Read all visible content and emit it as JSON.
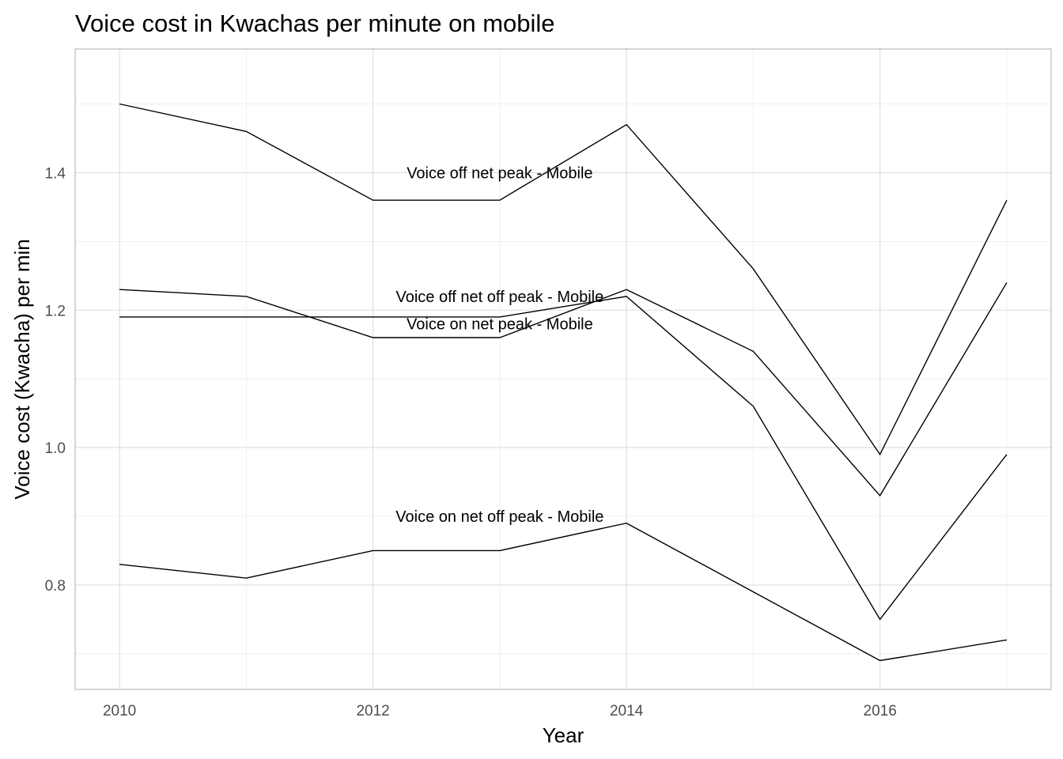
{
  "chart_data": {
    "type": "line",
    "title": "Voice cost in Kwachas per minute on mobile",
    "xlabel": "Year",
    "ylabel": "Voice cost (Kwacha) per min",
    "x": [
      2010,
      2011,
      2012,
      2013,
      2014,
      2015,
      2016,
      2017
    ],
    "xlim": [
      2009.65,
      2017.35
    ],
    "ylim": [
      0.648,
      1.58
    ],
    "x_ticks": [
      2010,
      2012,
      2014,
      2016
    ],
    "x_tick_labels": [
      "2010",
      "2012",
      "2014",
      "2016"
    ],
    "y_ticks": [
      0.8,
      1.0,
      1.2,
      1.4
    ],
    "y_tick_labels": [
      "0.8",
      "1.0",
      "1.2",
      "1.4"
    ],
    "grid": true,
    "legend": "none",
    "series": [
      {
        "name": "Voice off net peak - Mobile",
        "values": [
          1.5,
          1.46,
          1.36,
          1.36,
          1.47,
          1.26,
          0.99,
          1.36
        ],
        "label_at": {
          "x": 2013,
          "y": 1.4
        }
      },
      {
        "name": "Voice off net off peak - Mobile",
        "values": [
          1.23,
          1.22,
          1.16,
          1.16,
          1.23,
          1.14,
          0.93,
          1.24
        ],
        "label_at": {
          "x": 2013,
          "y": 1.22
        }
      },
      {
        "name": "Voice on net peak - Mobile",
        "values": [
          1.19,
          1.19,
          1.19,
          1.19,
          1.22,
          1.06,
          0.75,
          0.99
        ],
        "label_at": {
          "x": 2013,
          "y": 1.18
        }
      },
      {
        "name": "Voice on net off peak - Mobile",
        "values": [
          0.83,
          0.81,
          0.85,
          0.85,
          0.89,
          0.79,
          0.69,
          0.72
        ],
        "label_at": {
          "x": 2013,
          "y": 0.9
        }
      }
    ]
  }
}
